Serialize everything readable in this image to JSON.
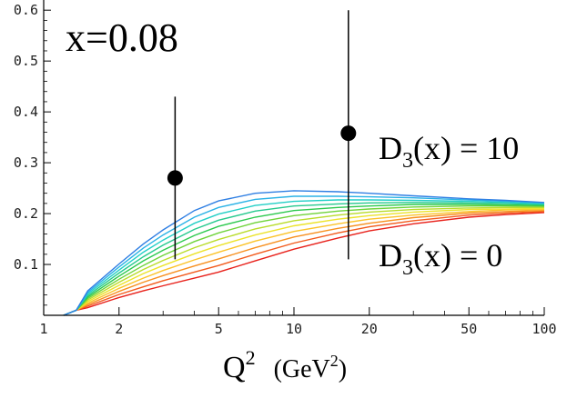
{
  "chart_data": {
    "type": "line",
    "title": "x=0.08",
    "xlabel": "Q",
    "xlabel_sup": "2",
    "xlabel_unit": "(GeV",
    "xlabel_unit_sup": "2",
    "xlabel_unit_close": ")",
    "xscale": "log",
    "xlim": [
      1,
      100
    ],
    "ylim": [
      0,
      0.62
    ],
    "x_ticks": [
      1,
      2,
      5,
      10,
      20,
      50,
      100
    ],
    "x_tick_labels": [
      "1",
      "2",
      "5",
      "10",
      "20",
      "50",
      "100"
    ],
    "y_ticks": [
      0.1,
      0.2,
      0.3,
      0.4,
      0.5,
      0.6
    ],
    "y_tick_labels": [
      "0.1",
      "0.2",
      "0.3",
      "0.4",
      "0.5",
      "0.6"
    ],
    "grid": false,
    "annotations": {
      "top": {
        "base": "D",
        "sub": "3",
        "rest": "(x) = 10"
      },
      "bottom": {
        "base": "D",
        "sub": "3",
        "rest": "(x) = 0"
      }
    },
    "x": [
      1.2,
      1.35,
      1.5,
      2,
      2.5,
      3,
      4,
      5,
      7,
      10,
      15,
      20,
      30,
      50,
      70,
      100
    ],
    "series": [
      {
        "color": "#e8201a",
        "values": [
          0.0,
          0.01,
          0.015,
          0.035,
          0.048,
          0.058,
          0.073,
          0.085,
          0.107,
          0.13,
          0.152,
          0.166,
          0.18,
          0.193,
          0.198,
          0.202
        ]
      },
      {
        "color": "#f25a1c",
        "values": [
          0.0,
          0.01,
          0.018,
          0.041,
          0.056,
          0.068,
          0.085,
          0.098,
          0.12,
          0.142,
          0.162,
          0.174,
          0.186,
          0.197,
          0.201,
          0.204
        ]
      },
      {
        "color": "#f7901f",
        "values": [
          0.0,
          0.01,
          0.021,
          0.047,
          0.065,
          0.078,
          0.097,
          0.111,
          0.133,
          0.154,
          0.171,
          0.181,
          0.192,
          0.201,
          0.204,
          0.206
        ]
      },
      {
        "color": "#fbc328",
        "values": [
          0.0,
          0.01,
          0.024,
          0.053,
          0.073,
          0.088,
          0.109,
          0.124,
          0.146,
          0.165,
          0.18,
          0.189,
          0.197,
          0.204,
          0.207,
          0.208
        ]
      },
      {
        "color": "#ece32a",
        "values": [
          0.0,
          0.01,
          0.027,
          0.059,
          0.082,
          0.098,
          0.121,
          0.137,
          0.158,
          0.176,
          0.189,
          0.196,
          0.203,
          0.208,
          0.209,
          0.21
        ]
      },
      {
        "color": "#b9dc2a",
        "values": [
          0.0,
          0.01,
          0.03,
          0.065,
          0.09,
          0.108,
          0.133,
          0.149,
          0.17,
          0.186,
          0.197,
          0.203,
          0.208,
          0.211,
          0.212,
          0.212
        ]
      },
      {
        "color": "#6fd33a",
        "values": [
          0.0,
          0.01,
          0.033,
          0.071,
          0.098,
          0.118,
          0.145,
          0.162,
          0.182,
          0.196,
          0.205,
          0.209,
          0.213,
          0.215,
          0.215,
          0.214
        ]
      },
      {
        "color": "#2cc94e",
        "values": [
          0.0,
          0.01,
          0.036,
          0.077,
          0.107,
          0.128,
          0.157,
          0.175,
          0.193,
          0.206,
          0.212,
          0.215,
          0.218,
          0.218,
          0.217,
          0.216
        ]
      },
      {
        "color": "#25c98e",
        "values": [
          0.0,
          0.01,
          0.039,
          0.083,
          0.115,
          0.138,
          0.169,
          0.187,
          0.205,
          0.215,
          0.219,
          0.221,
          0.222,
          0.221,
          0.22,
          0.218
        ]
      },
      {
        "color": "#22cfc6",
        "values": [
          0.0,
          0.01,
          0.042,
          0.089,
          0.124,
          0.148,
          0.181,
          0.199,
          0.216,
          0.224,
          0.227,
          0.227,
          0.226,
          0.224,
          0.222,
          0.219
        ]
      },
      {
        "color": "#2ab2e6",
        "values": [
          0.0,
          0.01,
          0.045,
          0.095,
          0.132,
          0.158,
          0.193,
          0.212,
          0.228,
          0.234,
          0.234,
          0.233,
          0.231,
          0.227,
          0.224,
          0.221
        ]
      },
      {
        "color": "#2f7fe3",
        "values": [
          0.0,
          0.01,
          0.048,
          0.101,
          0.14,
          0.168,
          0.206,
          0.225,
          0.24,
          0.245,
          0.243,
          0.24,
          0.235,
          0.229,
          0.226,
          0.222
        ]
      }
    ],
    "points": [
      {
        "x": 3.35,
        "y": 0.27,
        "ylow": 0.11,
        "yhigh": 0.43
      },
      {
        "x": 16.5,
        "y": 0.358,
        "ylow": 0.11,
        "yhigh": 0.6
      }
    ]
  }
}
